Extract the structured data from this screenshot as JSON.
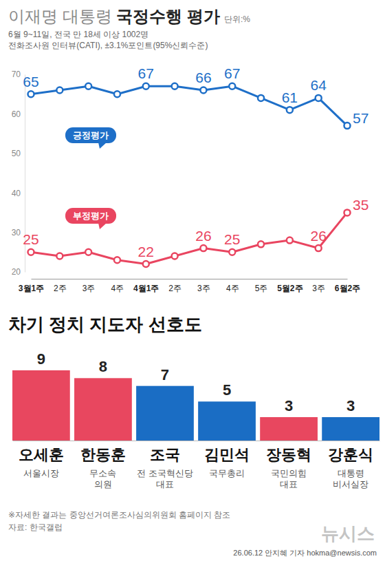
{
  "chart_data": [
    {
      "type": "line",
      "title": "이재명 대통령 국정수행 평가",
      "unit": "단위:%",
      "subtitle": [
        "6월 9~11일, 전국 만 18세 이상 1002명",
        "전화조사원 인터뷰(CATI), ±3.1%포인트(95%신뢰수준)"
      ],
      "categories": [
        "3월1주",
        "2주",
        "3주",
        "4주",
        "4월1주",
        "2주",
        "3주",
        "4주",
        "5주",
        "5월2주",
        "3주",
        "6월2주"
      ],
      "series": [
        {
          "name": "긍정평가",
          "color": "#1e6fc8",
          "marker": "circle",
          "values": [
            65,
            66,
            67,
            65,
            67,
            67,
            66,
            67,
            64,
            61,
            64,
            57
          ],
          "value_labels": [
            "65",
            null,
            null,
            null,
            "67",
            null,
            "66",
            "67",
            null,
            "61",
            "64",
            "57"
          ]
        },
        {
          "name": "부정평가",
          "color": "#e94560",
          "marker": "circle",
          "values": [
            25,
            24,
            25,
            23,
            22,
            24,
            26,
            25,
            27,
            28,
            26,
            35
          ],
          "value_labels": [
            "25",
            null,
            null,
            null,
            "22",
            null,
            "26",
            "25",
            null,
            null,
            "26",
            "35"
          ]
        }
      ],
      "ylim": [
        20,
        70
      ],
      "yticks": [
        20,
        30,
        40,
        50,
        60,
        70
      ],
      "grid": false,
      "data_labels": true
    },
    {
      "type": "bar",
      "title": "차기 정치 지도자 선호도",
      "categories": [
        "오세훈",
        "한동훈",
        "조국",
        "김민석",
        "장동혁",
        "강훈식"
      ],
      "subtitles": [
        [
          "서울시장"
        ],
        [
          "무소속",
          "의원"
        ],
        [
          "전 조국혁신당",
          "대표"
        ],
        [
          "국무총리"
        ],
        [
          "국민의힘",
          "대표"
        ],
        [
          "대통령",
          "비서실장"
        ]
      ],
      "values": [
        9,
        8,
        7,
        5,
        3,
        3
      ],
      "colors": [
        "#e8475f",
        "#e8475f",
        "#1a6dc4",
        "#1a6dc4",
        "#e8475f",
        "#1a6dc4"
      ],
      "ylim": [
        0,
        9
      ],
      "data_labels": true,
      "tick_labels": "x"
    }
  ],
  "footer": {
    "note": "※자세한 결과는 중앙선거여론조사심의위원회 홈페이지 참조",
    "source": "자료: 한국갤럽",
    "byline": "26.06.12 안지혜 기자 hokma@newsis.com",
    "logo": "뉴시스"
  }
}
